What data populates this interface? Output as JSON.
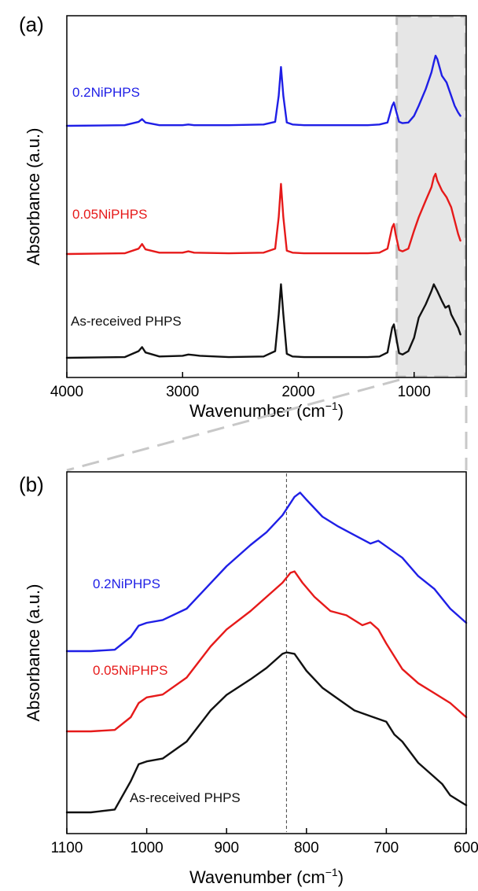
{
  "chart_data": [
    {
      "panel": "(a)",
      "type": "line",
      "xlabel": "Wavenumber (cm",
      "xlabel_sup": "−1",
      "xlabel_close": ")",
      "ylabel": "Absorbance (a.u.)",
      "xlim": [
        4000,
        550
      ],
      "xticks": [
        4000,
        3000,
        2000,
        1000
      ],
      "y_ticks_shown": false,
      "highlight_region": [
        1150,
        550
      ],
      "series": [
        {
          "name": "0.2NiPHPS",
          "color": "#1f1fe6",
          "offset": 2,
          "x": [
            4000,
            3500,
            3380,
            3350,
            3320,
            3200,
            3000,
            2950,
            2900,
            2600,
            2300,
            2200,
            2170,
            2150,
            2130,
            2100,
            2050,
            1950,
            1600,
            1400,
            1300,
            1230,
            1190,
            1175,
            1160,
            1130,
            1100,
            1050,
            1000,
            960,
            900,
            850,
            830,
            815,
            800,
            760,
            720,
            680,
            650,
            620,
            600
          ],
          "y": [
            0,
            0.01,
            0.06,
            0.1,
            0.05,
            0.01,
            0.01,
            0.02,
            0.01,
            0.01,
            0.02,
            0.06,
            0.45,
            0.88,
            0.45,
            0.05,
            0.02,
            0.01,
            0.01,
            0.01,
            0.02,
            0.05,
            0.3,
            0.35,
            0.25,
            0.06,
            0.04,
            0.05,
            0.15,
            0.3,
            0.55,
            0.8,
            0.95,
            1.05,
            1.0,
            0.75,
            0.65,
            0.45,
            0.3,
            0.2,
            0.15
          ]
        },
        {
          "name": "0.05NiPHPS",
          "color": "#e61a1a",
          "offset": 1,
          "x": [
            4000,
            3500,
            3380,
            3350,
            3320,
            3200,
            3000,
            2950,
            2900,
            2600,
            2300,
            2200,
            2170,
            2150,
            2130,
            2100,
            2050,
            1950,
            1600,
            1400,
            1300,
            1230,
            1190,
            1175,
            1160,
            1130,
            1100,
            1050,
            1000,
            960,
            900,
            850,
            830,
            815,
            800,
            760,
            720,
            680,
            650,
            620,
            600
          ],
          "y": [
            0,
            0.01,
            0.08,
            0.15,
            0.07,
            0.02,
            0.02,
            0.04,
            0.02,
            0.01,
            0.02,
            0.08,
            0.55,
            1.05,
            0.55,
            0.05,
            0.02,
            0.01,
            0.01,
            0.01,
            0.02,
            0.08,
            0.4,
            0.45,
            0.3,
            0.06,
            0.04,
            0.08,
            0.35,
            0.55,
            0.8,
            1.0,
            1.15,
            1.2,
            1.1,
            0.95,
            0.85,
            0.7,
            0.5,
            0.3,
            0.2
          ]
        },
        {
          "name": "As-received PHPS",
          "color": "#111111",
          "offset": 0,
          "x": [
            4000,
            3500,
            3380,
            3350,
            3320,
            3200,
            3000,
            2950,
            2900,
            2850,
            2600,
            2300,
            2200,
            2170,
            2150,
            2130,
            2100,
            2050,
            1950,
            1600,
            1400,
            1300,
            1230,
            1190,
            1175,
            1160,
            1130,
            1100,
            1050,
            1000,
            960,
            900,
            850,
            830,
            815,
            800,
            760,
            730,
            700,
            680,
            650,
            620,
            600
          ],
          "y": [
            0,
            0.01,
            0.1,
            0.16,
            0.08,
            0.02,
            0.03,
            0.05,
            0.04,
            0.03,
            0.01,
            0.02,
            0.1,
            0.65,
            1.1,
            0.65,
            0.06,
            0.02,
            0.01,
            0.01,
            0.01,
            0.02,
            0.08,
            0.45,
            0.5,
            0.35,
            0.07,
            0.05,
            0.1,
            0.3,
            0.6,
            0.8,
            1.0,
            1.1,
            1.05,
            1.0,
            0.85,
            0.75,
            0.78,
            0.65,
            0.55,
            0.45,
            0.35
          ]
        }
      ]
    },
    {
      "panel": "(b)",
      "type": "line",
      "xlabel": "Wavenumber (cm",
      "xlabel_sup": "−1",
      "xlabel_close": ")",
      "ylabel": "Absorbance (a.u.)",
      "xlim": [
        1100,
        600
      ],
      "xticks": [
        1100,
        1000,
        900,
        800,
        700,
        600
      ],
      "y_ticks_shown": false,
      "reference_line_x": 825,
      "series": [
        {
          "name": "0.2NiPHPS",
          "color": "#1f1fe6",
          "offset": 2,
          "x": [
            1100,
            1070,
            1040,
            1020,
            1010,
            1000,
            980,
            950,
            920,
            900,
            870,
            850,
            830,
            815,
            808,
            800,
            780,
            760,
            740,
            720,
            710,
            700,
            680,
            660,
            640,
            620,
            600
          ],
          "y": [
            0,
            0,
            0.01,
            0.1,
            0.18,
            0.2,
            0.22,
            0.3,
            0.48,
            0.6,
            0.75,
            0.84,
            0.96,
            1.09,
            1.12,
            1.07,
            0.95,
            0.88,
            0.82,
            0.76,
            0.78,
            0.74,
            0.66,
            0.53,
            0.44,
            0.3,
            0.2
          ]
        },
        {
          "name": "0.05NiPHPS",
          "color": "#e61a1a",
          "offset": 1,
          "x": [
            1100,
            1070,
            1040,
            1020,
            1010,
            1000,
            980,
            950,
            920,
            900,
            870,
            850,
            830,
            820,
            815,
            805,
            790,
            770,
            750,
            730,
            720,
            710,
            700,
            680,
            660,
            640,
            620,
            600
          ],
          "y": [
            0,
            0,
            0.01,
            0.1,
            0.2,
            0.24,
            0.26,
            0.38,
            0.6,
            0.72,
            0.85,
            0.95,
            1.05,
            1.12,
            1.13,
            1.05,
            0.95,
            0.85,
            0.82,
            0.75,
            0.77,
            0.72,
            0.62,
            0.44,
            0.34,
            0.27,
            0.2,
            0.1
          ]
        },
        {
          "name": "As-received PHPS",
          "color": "#111111",
          "offset": 0,
          "x": [
            1100,
            1070,
            1040,
            1020,
            1010,
            1000,
            980,
            950,
            920,
            900,
            870,
            850,
            830,
            825,
            815,
            800,
            780,
            760,
            740,
            730,
            720,
            700,
            690,
            680,
            660,
            640,
            630,
            620,
            600
          ],
          "y": [
            0,
            0,
            0.02,
            0.22,
            0.34,
            0.36,
            0.38,
            0.5,
            0.72,
            0.83,
            0.94,
            1.02,
            1.12,
            1.13,
            1.12,
            1.0,
            0.88,
            0.8,
            0.72,
            0.7,
            0.68,
            0.64,
            0.55,
            0.5,
            0.35,
            0.25,
            0.2,
            0.12,
            0.05
          ]
        }
      ]
    }
  ]
}
